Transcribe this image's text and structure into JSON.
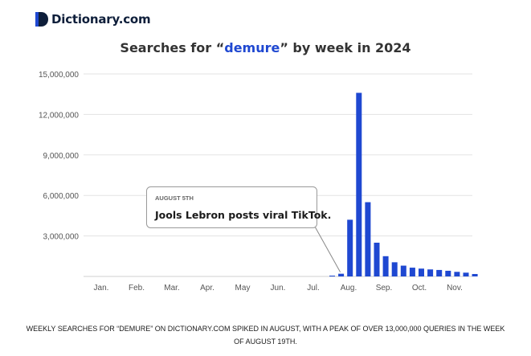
{
  "brand": {
    "name": "Dictionary.com",
    "logo_icon": "dictionary-d-icon",
    "color": "#1f48d1"
  },
  "title": {
    "prefix": "Searches for “",
    "term": "demure",
    "suffix": "” by week in 2024"
  },
  "chart_data": {
    "type": "bar",
    "ylim": [
      0,
      15000000
    ],
    "yticks": [
      "15,000,000",
      "12,000,000",
      "9,000,000",
      "6,000,000",
      "3,000,000"
    ],
    "ytick_values": [
      15000000,
      12000000,
      9000000,
      6000000,
      3000000
    ],
    "months": [
      "Jan.",
      "Feb.",
      "Mar.",
      "Apr.",
      "May",
      "Jun.",
      "Jul.",
      "Aug.",
      "Sep.",
      "Oct.",
      "Nov."
    ],
    "weeks": [
      "Jul. 29",
      "Aug. 5",
      "Aug. 12",
      "Aug. 19",
      "Aug. 26",
      "Sep. 2",
      "Sep. 9",
      "Sep. 16",
      "Sep. 23",
      "Sep. 30",
      "Oct. 7",
      "Oct. 14",
      "Oct. 21",
      "Oct. 28",
      "Nov. 4",
      "Nov. 11",
      "Nov. 18"
    ],
    "values": [
      60000,
      200000,
      4200000,
      13600000,
      5500000,
      2500000,
      1500000,
      1050000,
      800000,
      650000,
      580000,
      520000,
      480000,
      420000,
      340000,
      280000,
      180000
    ],
    "bar_color": "#1f48d1",
    "grid": true,
    "annotation": {
      "date": "AUGUST 5TH",
      "text": "Jools Lebron posts viral TikTok.",
      "week": "Aug. 5"
    }
  },
  "caption": {
    "line1": "WEEKLY SEARCHES FOR “DEMURE” ON DICTIONARY.COM SPIKED IN AUGUST, WITH A PEAK OF OVER 13,000,000 QUERIES IN THE WEEK",
    "line2": "OF AUGUST 19TH."
  }
}
